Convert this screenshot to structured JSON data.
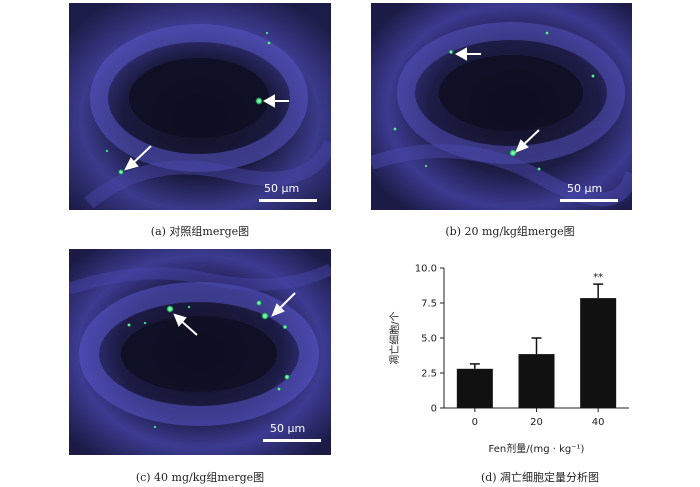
{
  "panels": [
    {
      "scale_label": "50 μm",
      "caption": "(a)  对照组merge图"
    },
    {
      "scale_label": "50 μm",
      "caption": "(b)  20 mg/kg组merge图"
    },
    {
      "scale_label": "50 μm",
      "caption": "(c)    40 mg/kg组merge图"
    }
  ],
  "chart_caption": "(d)  凋亡细胞定量分析图",
  "chart_data": {
    "type": "bar",
    "categories": [
      "0",
      "20",
      "40"
    ],
    "values": [
      2.8,
      3.85,
      7.85
    ],
    "errors": [
      0.35,
      1.15,
      1.0
    ],
    "significance": [
      "",
      "",
      "**"
    ],
    "ylabel": "凋亡细胞/个",
    "xlabel": "Fen剂量/(mg · kg⁻¹)",
    "ylim": [
      0,
      10
    ],
    "yticks": [
      "0",
      "2.5",
      "5.0",
      "7.5",
      "10.0"
    ],
    "grid": false,
    "bar_color": "#111111"
  }
}
